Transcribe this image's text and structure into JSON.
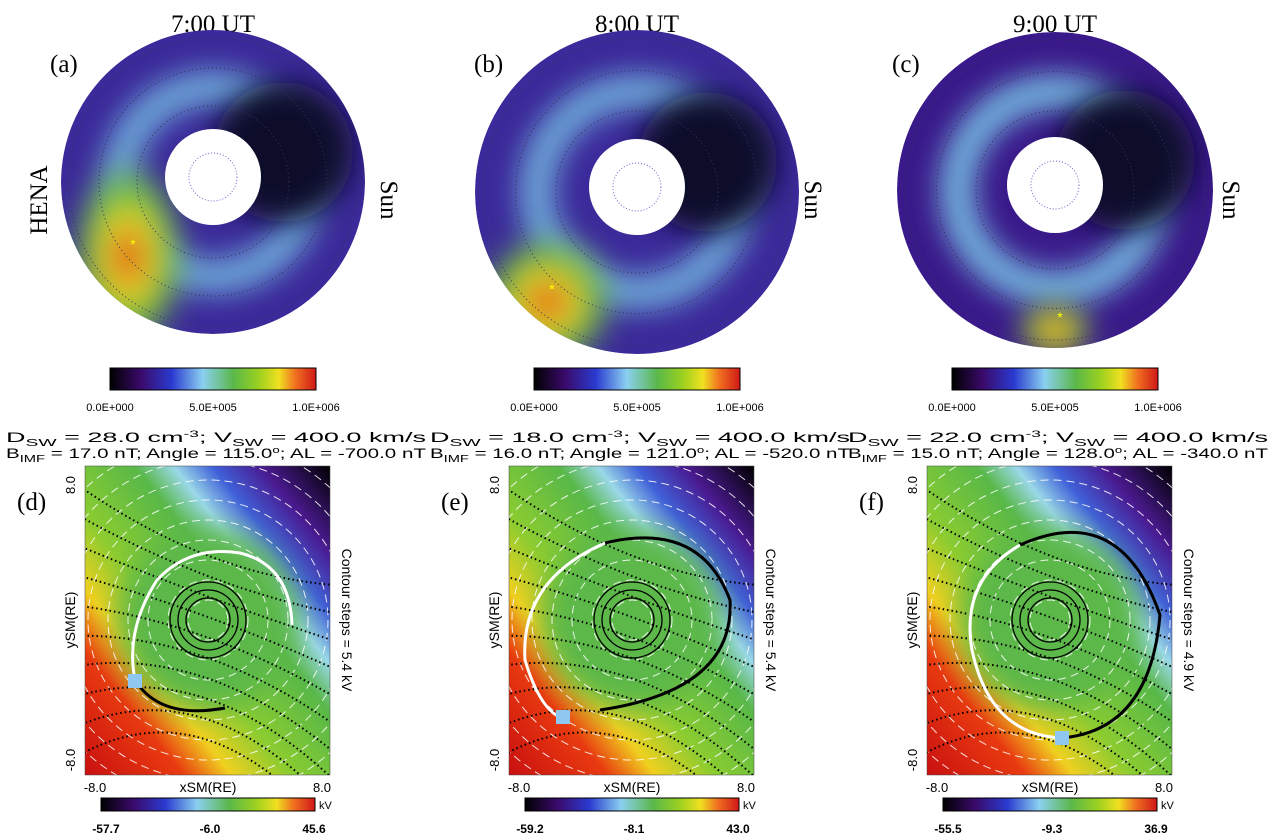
{
  "row_label": "HENA",
  "side_label": "Sun",
  "top_panels": [
    {
      "time": "7:00 UT",
      "label": "(a)",
      "colorbar_ticks": [
        "0.0E+000",
        "5.0E+005",
        "1.0E+006"
      ]
    },
    {
      "time": "8:00 UT",
      "label": "(b)",
      "colorbar_ticks": [
        "0.0E+000",
        "5.0E+005",
        "1.0E+006"
      ]
    },
    {
      "time": "9:00 UT",
      "label": "(c)",
      "colorbar_ticks": [
        "0.0E+000",
        "5.0E+005",
        "1.0E+006"
      ]
    }
  ],
  "bottom_panels": [
    {
      "line1": [
        "D",
        "SW",
        " = 28.0 cm",
        "-3",
        "; V",
        "SW",
        " = 400.0 km/s"
      ],
      "line2": [
        "B",
        "IMF",
        " =  17.0 nT; Angle =  115.0",
        "o",
        "; AL =  -700.0 nT"
      ],
      "label": "(d)",
      "x_label": "xSM(RE)",
      "y_label": "ySM(RE)",
      "x_ticks": [
        "-8.0",
        "8.0"
      ],
      "y_ticks": [
        "-8.0",
        "8.0"
      ],
      "contour": "Contour steps = 5.4 kV",
      "unit": "kV",
      "colorbar_ticks": [
        "-57.7",
        "-6.0",
        "45.6"
      ]
    },
    {
      "line1": [
        "D",
        "SW",
        " = 18.0 cm",
        "-3",
        "; V",
        "SW",
        " = 400.0 km/s"
      ],
      "line2": [
        "B",
        "IMF",
        " =  16.0 nT; Angle =  121.0",
        "o",
        "; AL =  -520.0 nT"
      ],
      "label": "(e)",
      "x_label": "xSM(RE)",
      "y_label": "ySM(RE)",
      "x_ticks": [
        "-8.0",
        "8.0"
      ],
      "y_ticks": [
        "-8.0",
        "8.0"
      ],
      "contour": "Contour steps = 5.4 kV",
      "unit": "kV",
      "colorbar_ticks": [
        "-59.2",
        "-8.1",
        "43.0"
      ]
    },
    {
      "line1": [
        "D",
        "SW",
        " = 22.0 cm",
        "-3",
        "; V",
        "SW",
        " = 400.0 km/s"
      ],
      "line2": [
        "B",
        "IMF",
        " =  15.0 nT; Angle =  128.0",
        "o",
        "; AL =  -340.0 nT"
      ],
      "label": "(f)",
      "x_label": "xSM(RE)",
      "y_label": "ySM(RE)",
      "x_ticks": [
        "-8.0",
        "8.0"
      ],
      "y_ticks": [
        "-8.0",
        "8.0"
      ],
      "contour": "Contour steps = 4.9 kV",
      "unit": "kV",
      "colorbar_ticks": [
        "-55.5",
        "-9.3",
        "36.9"
      ]
    }
  ]
}
